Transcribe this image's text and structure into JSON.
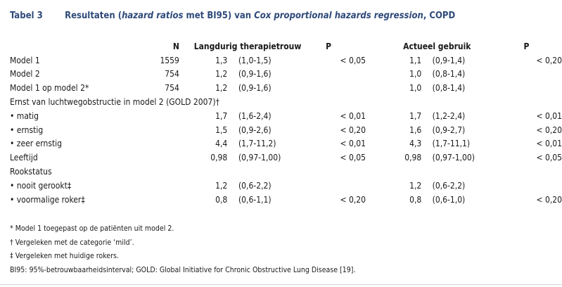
{
  "caption": {
    "label": "Tabel 3",
    "title_parts": [
      {
        "text": "Resultaten (",
        "italic": false
      },
      {
        "text": "hazard ratios",
        "italic": true
      },
      {
        "text": " met BI95) van ",
        "italic": false
      },
      {
        "text": "Cox proportional hazards regression",
        "italic": true
      },
      {
        "text": ", COPD",
        "italic": false
      }
    ]
  },
  "columns": {
    "n": "N",
    "therapy": "Langdurig therapietrouw",
    "p1": "P",
    "current": "Actueel gebruik",
    "p2": "P"
  },
  "rows": [
    {
      "label": "Model 1",
      "n": "1559",
      "hr1": "1,3",
      "ci1": "(1,0-1,5)",
      "p1": "< 0,05",
      "hr2": "1,1",
      "ci2": "(0,9-1,4)",
      "p2": "< 0,20"
    },
    {
      "label": "Model 2",
      "n": "754",
      "hr1": "1,2",
      "ci1": "(0,9-1,6)",
      "p1": "",
      "hr2": "1,0",
      "ci2": "(0,8-1,4)",
      "p2": ""
    },
    {
      "label": "Model 1 op model 2*",
      "n": "754",
      "hr1": "1,2",
      "ci1": "(0,9-1,6)",
      "p1": "",
      "hr2": "1,0",
      "ci2": "(0,8-1,4)",
      "p2": ""
    },
    {
      "label": "Ernst van luchtwegobstructie in model 2 (GOLD 2007)†",
      "section": true
    },
    {
      "label": "• matig",
      "n": "",
      "hr1": "1,7",
      "ci1": "(1,6-2,4)",
      "p1": "< 0,01",
      "hr2": "1,7",
      "ci2": "(1,2-2,4)",
      "p2": "< 0,01"
    },
    {
      "label": "• ernstig",
      "n": "",
      "hr1": "1,5",
      "ci1": "(0,9-2,6)",
      "p1": "< 0,20",
      "hr2": "1,6",
      "ci2": "(0,9-2,7)",
      "p2": "< 0,20"
    },
    {
      "label": "• zeer ernstig",
      "n": "",
      "hr1": "4,4",
      "ci1": "(1,7-11,2)",
      "p1": "< 0,01",
      "hr2": "4,3",
      "ci2": "(1,7-11,1)",
      "p2": "< 0,01"
    },
    {
      "label": "Leeftijd",
      "n": "",
      "hr1": "0,98",
      "ci1": "(0,97-1,00)",
      "p1": "< 0,05",
      "hr2": "0,98",
      "ci2": "(0,97-1,00)",
      "p2": "< 0,05"
    },
    {
      "label": "Rookstatus",
      "section": true
    },
    {
      "label": "• nooit gerookt‡",
      "n": "",
      "hr1": "1,2",
      "ci1": "(0,6-2,2)",
      "p1": "",
      "hr2": "1,2",
      "ci2": "(0,6-2,2)",
      "p2": ""
    },
    {
      "label": "• voormalige roker‡",
      "n": "",
      "hr1": "0,8",
      "ci1": "(0,6-1,1)",
      "p1": "< 0,20",
      "hr2": "0,8",
      "ci2": "(0,6-1,0)",
      "p2": "< 0,20"
    }
  ],
  "notes": [
    "* Model 1 toegepast op de patiënten uit model 2.",
    "† Vergeleken met de categorie ‘mild’.",
    "‡ Vergeleken met huidige rokers.",
    "BI95: 95%-betrouwbaarheidsinterval; GOLD: Global Initiative for Chronic Obstructive Lung Disease [19]."
  ],
  "colors": {
    "caption": "#2f4a7a",
    "text": "#1a1a1a"
  }
}
